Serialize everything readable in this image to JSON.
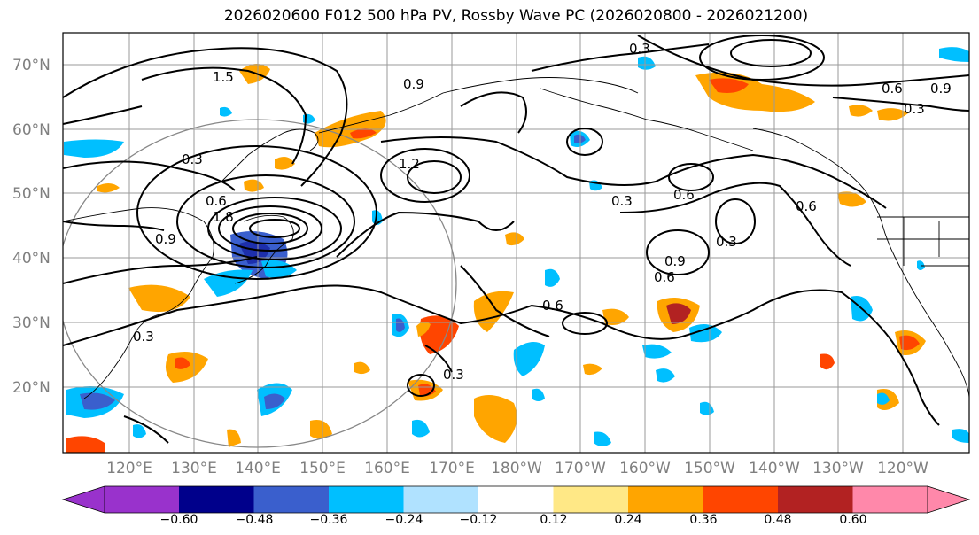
{
  "title": "2026020600 F012 500 hPa PV, Rossby Wave PC (2026020800 - 2026021200)",
  "lat_labels": [
    "70°N",
    "60°N",
    "50°N",
    "40°N",
    "30°N",
    "20°N"
  ],
  "lon_labels": [
    "120°E",
    "130°E",
    "140°E",
    "150°E",
    "160°E",
    "170°E",
    "180°W",
    "170°W",
    "160°W",
    "150°W",
    "140°W",
    "130°W",
    "120°W"
  ],
  "contour_labels": [
    "0.3",
    "0.6",
    "0.9",
    "1.2",
    "1.5",
    "1.8",
    "0.3",
    "0.6",
    "0.9",
    "0.3",
    "0.6",
    "0.9",
    "0.3",
    "0.6",
    "0.3",
    "0.3",
    "0.6",
    "0.9",
    "0.3",
    "0.6"
  ],
  "colorbar": {
    "ticks": [
      "−0.60",
      "−0.48",
      "−0.36",
      "−0.24",
      "−0.12",
      "0.12",
      "0.24",
      "0.36",
      "0.48",
      "0.60"
    ],
    "colors": [
      "#9932cc",
      "#00008b",
      "#3a5fcd",
      "#00bfff",
      "#b0e2ff",
      "#ffffff",
      "#ffe886",
      "#ffa500",
      "#ff4500",
      "#b22222",
      "#ff88aa"
    ]
  }
}
